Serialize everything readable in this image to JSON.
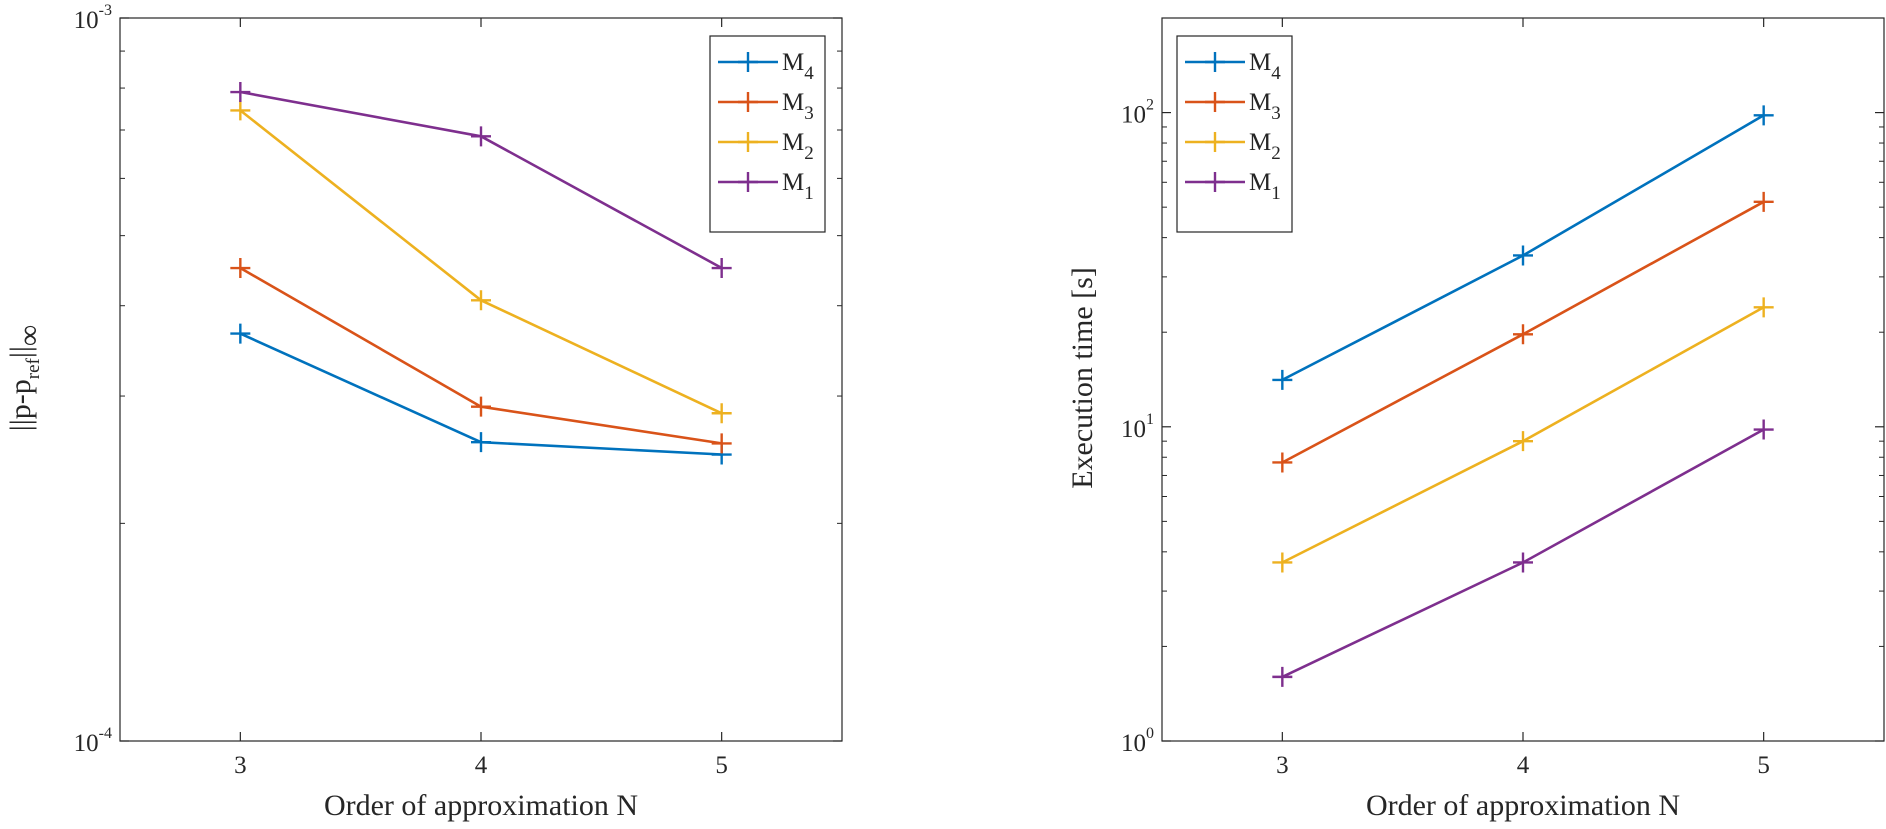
{
  "chart_data": [
    {
      "type": "line",
      "title": "",
      "xlabel": "Order of approximation N",
      "ylabel": {
        "base": "||p-p",
        "sub": "ref",
        "tail": "||",
        "inf": "∞"
      },
      "yscale": "log",
      "xlim": [
        2.5,
        5.5
      ],
      "ylim": [
        0.0001,
        0.001
      ],
      "x": [
        3,
        4,
        5
      ],
      "x_ticks": [
        "3",
        "4",
        "5"
      ],
      "y_ticks": [
        {
          "value": 0.0001,
          "base": "10",
          "exp": "-4"
        },
        {
          "value": 0.001,
          "base": "10",
          "exp": "-3"
        }
      ],
      "grid": false,
      "legend_position": "top-right",
      "series": [
        {
          "name": "M",
          "sub": "4",
          "color": "#0072BD",
          "values": [
            0.000366,
            0.000259,
            0.000249
          ]
        },
        {
          "name": "M",
          "sub": "3",
          "color": "#D95319",
          "values": [
            0.000451,
            0.00029,
            0.000258
          ]
        },
        {
          "name": "M",
          "sub": "2",
          "color": "#EDB120",
          "values": [
            0.000745,
            0.000407,
            0.000284
          ]
        },
        {
          "name": "M",
          "sub": "1",
          "color": "#7E2F8E",
          "values": [
            0.00079,
            0.000686,
            0.000451
          ]
        }
      ]
    },
    {
      "type": "line",
      "title": "",
      "xlabel": "Order of approximation N",
      "ylabel": "Execution time [s]",
      "yscale": "log",
      "xlim": [
        2.5,
        5.5
      ],
      "ylim": [
        1,
        200
      ],
      "x": [
        3,
        4,
        5
      ],
      "x_ticks": [
        "3",
        "4",
        "5"
      ],
      "y_ticks": [
        {
          "value": 1,
          "base": "10",
          "exp": "0"
        },
        {
          "value": 10,
          "base": "10",
          "exp": "1"
        },
        {
          "value": 100,
          "base": "10",
          "exp": "2"
        }
      ],
      "grid": false,
      "legend_position": "top-left",
      "series": [
        {
          "name": "M",
          "sub": "4",
          "color": "#0072BD",
          "values": [
            14.1,
            35.1,
            98.0
          ]
        },
        {
          "name": "M",
          "sub": "3",
          "color": "#D95319",
          "values": [
            7.7,
            19.7,
            52.0
          ]
        },
        {
          "name": "M",
          "sub": "2",
          "color": "#EDB120",
          "values": [
            3.7,
            9.0,
            24.0
          ]
        },
        {
          "name": "M",
          "sub": "1",
          "color": "#7E2F8E",
          "values": [
            1.6,
            3.7,
            9.8
          ]
        }
      ]
    }
  ]
}
